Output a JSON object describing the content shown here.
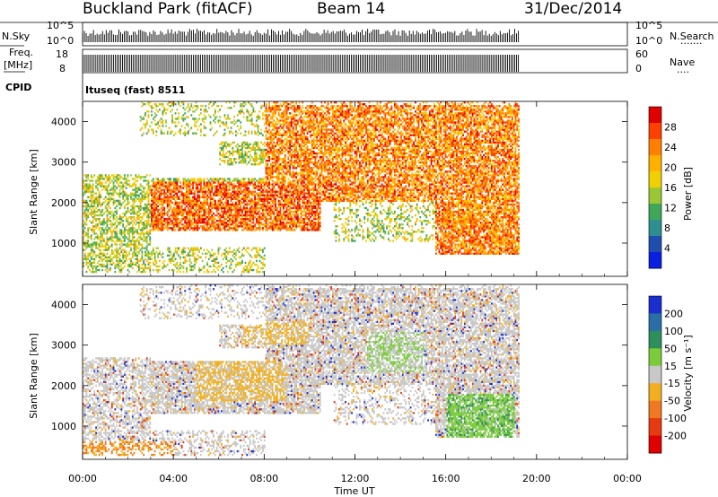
{
  "header": {
    "station": "Buckland Park (fitACF)",
    "beam": "Beam 14",
    "date": "31/Dec/2014"
  },
  "summary_panel": {
    "nsky_label": "N.Sky",
    "nsky_ticks": [
      "10^5",
      "10^0"
    ],
    "nsearch_label": "N.Search",
    "nsearch_ticks": [
      "10^5",
      "10^0"
    ],
    "freq_label": "Freq.",
    "freq_unit": "[MHz]",
    "freq_ticks": [
      "18",
      "8"
    ],
    "nave_label": "Nave",
    "nave_ticks": [
      "60",
      "0"
    ],
    "cpid_label": "CPID",
    "cpid_value": "Ituseq (fast) 8511"
  },
  "chart_data": [
    {
      "type": "heatmap",
      "name": "power",
      "ylabel": "Slant Range [km]",
      "y_ticks": [
        "4000",
        "3000",
        "2000",
        "1000"
      ],
      "ylim": [
        180,
        4500
      ],
      "xlim": [
        0,
        24
      ],
      "data_end_hour": 19.2,
      "colorbar": {
        "label": "Power [dB]",
        "tick_labels": [
          "28",
          "24",
          "20",
          "16",
          "12",
          "8",
          "4"
        ],
        "colors": [
          "#e00000",
          "#ff4000",
          "#ff8000",
          "#ffb000",
          "#f0d000",
          "#9ac834",
          "#3ea75a",
          "#2e8f8f",
          "#1e4fb0",
          "#0a1fe0"
        ]
      },
      "echo_regions_description_hours_km": [
        {
          "t": [
            0,
            3
          ],
          "r": [
            500,
            2600
          ],
          "level": "mixed"
        },
        {
          "t": [
            3,
            10
          ],
          "r": [
            1300,
            2500
          ],
          "level": "high"
        },
        {
          "t": [
            8,
            19
          ],
          "r": [
            2000,
            4300
          ],
          "level": "high"
        },
        {
          "t": [
            16,
            19
          ],
          "r": [
            800,
            1800
          ],
          "level": "high"
        }
      ]
    },
    {
      "type": "heatmap",
      "name": "velocity",
      "ylabel": "Slant Range [km]",
      "y_ticks": [
        "4000",
        "3000",
        "2000",
        "1000"
      ],
      "ylim": [
        180,
        4500
      ],
      "xlim": [
        0,
        24
      ],
      "data_end_hour": 19.2,
      "colorbar": {
        "label": "Velocity [m s⁻¹]",
        "tick_labels": [
          "200",
          "100",
          "50",
          "15",
          "-15",
          "-50",
          "-100",
          "-200"
        ],
        "colors": [
          "#1a2ed0",
          "#2a6ea8",
          "#2e8f5c",
          "#7ccc3a",
          "#c8c8c8",
          "#f2b020",
          "#f07820",
          "#e83a10",
          "#e00000"
        ]
      }
    }
  ],
  "x_axis": {
    "label": "Time UT",
    "tick_labels": [
      "00:00",
      "04:00",
      "08:00",
      "12:00",
      "16:00",
      "20:00",
      "00:00"
    ]
  }
}
